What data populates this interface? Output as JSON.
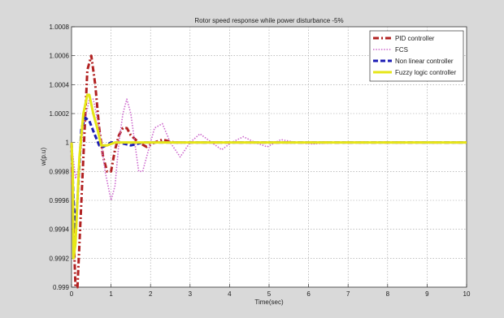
{
  "chart_data": {
    "type": "line",
    "title": "Rotor speed response while power disturbance -5%",
    "xlabel": "Time(sec)",
    "ylabel": "w(p.u)",
    "xlim": [
      0,
      10
    ],
    "ylim": [
      0.999,
      1.0008
    ],
    "xticks": [
      0,
      1,
      2,
      3,
      4,
      5,
      6,
      7,
      8,
      9,
      10
    ],
    "yticks": [
      0.999,
      0.9992,
      0.9994,
      0.9996,
      0.9998,
      1,
      1.0002,
      1.0004,
      1.0006,
      1.0008
    ],
    "ytick_labels": [
      "0.999",
      "0.9992",
      "0.9994",
      "0.9996",
      "0.9998",
      "1",
      "1.0002",
      "1.0004",
      "1.0006",
      "1.0008"
    ],
    "grid": true,
    "legend_position": "top-right",
    "series": [
      {
        "name": "PID controller",
        "color": "#b22222",
        "style": "dash-dot",
        "points": [
          [
            0,
            1.0
          ],
          [
            0.05,
            0.9994
          ],
          [
            0.1,
            0.999
          ],
          [
            0.15,
            0.999
          ],
          [
            0.2,
            0.9993
          ],
          [
            0.3,
            0.9999
          ],
          [
            0.4,
            1.0005
          ],
          [
            0.5,
            1.0006
          ],
          [
            0.6,
            1.0004
          ],
          [
            0.7,
            1.0001
          ],
          [
            0.8,
            0.9999
          ],
          [
            0.9,
            0.9998
          ],
          [
            1.0,
            0.9998
          ],
          [
            1.1,
            0.99995
          ],
          [
            1.2,
            1.00005
          ],
          [
            1.3,
            1.0001
          ],
          [
            1.4,
            1.0001
          ],
          [
            1.5,
            1.00005
          ],
          [
            1.7,
            1.0
          ],
          [
            1.9,
            0.99997
          ],
          [
            2.1,
            1.0
          ],
          [
            2.3,
            1.00002
          ],
          [
            2.6,
            1.0
          ],
          [
            3.0,
            1.0
          ],
          [
            10,
            1.0
          ]
        ]
      },
      {
        "name": "FCS",
        "color": "#cc66cc",
        "style": "dotted",
        "points": [
          [
            0,
            1.0
          ],
          [
            0.1,
            0.99975
          ],
          [
            0.2,
            0.99985
          ],
          [
            0.3,
            1.0001
          ],
          [
            0.45,
            1.0003
          ],
          [
            0.55,
            1.0003
          ],
          [
            0.7,
            1.0001
          ],
          [
            0.85,
            0.9998
          ],
          [
            1.0,
            0.9996
          ],
          [
            1.1,
            0.9997
          ],
          [
            1.2,
            1.0
          ],
          [
            1.3,
            1.0002
          ],
          [
            1.4,
            1.0003
          ],
          [
            1.5,
            1.0002
          ],
          [
            1.6,
            1.0
          ],
          [
            1.7,
            0.9998
          ],
          [
            1.8,
            0.9998
          ],
          [
            1.95,
            0.99995
          ],
          [
            2.1,
            1.0001
          ],
          [
            2.3,
            1.00013
          ],
          [
            2.5,
            1.0
          ],
          [
            2.75,
            0.9999
          ],
          [
            3.0,
            1.0
          ],
          [
            3.25,
            1.00006
          ],
          [
            3.55,
            1.0
          ],
          [
            3.8,
            0.99995
          ],
          [
            4.05,
            1.0
          ],
          [
            4.35,
            1.00004
          ],
          [
            4.65,
            1.0
          ],
          [
            4.95,
            0.99997
          ],
          [
            5.3,
            1.00002
          ],
          [
            5.7,
            1.0
          ],
          [
            6.1,
            0.99999
          ],
          [
            6.6,
            1.0
          ],
          [
            10,
            1.0
          ]
        ]
      },
      {
        "name": "Non linear controller",
        "color": "#1c1cb4",
        "style": "dashed",
        "points": [
          [
            0,
            1.0
          ],
          [
            0.05,
            0.9996
          ],
          [
            0.1,
            0.9994
          ],
          [
            0.15,
            0.9996
          ],
          [
            0.25,
            1.0001
          ],
          [
            0.35,
            1.00017
          ],
          [
            0.45,
            1.00015
          ],
          [
            0.55,
            1.00008
          ],
          [
            0.7,
            0.99998
          ],
          [
            0.8,
            0.99997
          ],
          [
            1.0,
            1.0
          ],
          [
            1.2,
            1.0
          ],
          [
            1.5,
            0.99998
          ],
          [
            1.8,
            1.0
          ],
          [
            2.0,
            1.0
          ],
          [
            10,
            1.0
          ]
        ]
      },
      {
        "name": "Fuzzy logic controller",
        "color": "#e6e617",
        "style": "solid",
        "points": [
          [
            0,
            1.0
          ],
          [
            0.03,
            0.9998
          ],
          [
            0.05,
            0.9992
          ],
          [
            0.1,
            0.9993
          ],
          [
            0.2,
            0.9999
          ],
          [
            0.3,
            1.0002
          ],
          [
            0.4,
            1.00033
          ],
          [
            0.45,
            1.00033
          ],
          [
            0.55,
            1.0002
          ],
          [
            0.65,
            1.0001
          ],
          [
            0.75,
            0.99998
          ],
          [
            0.9,
            0.99998
          ],
          [
            1.1,
            1.0
          ],
          [
            1.5,
            1.0
          ],
          [
            10,
            1.0
          ]
        ]
      }
    ]
  }
}
